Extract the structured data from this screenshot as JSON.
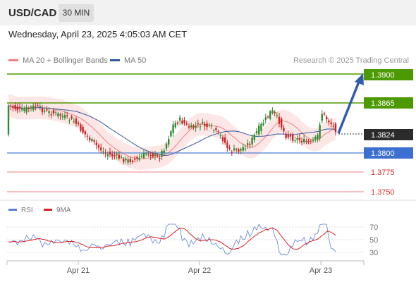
{
  "header": {
    "symbol": "USD/CAD",
    "timeframe": "30 MIN",
    "datetime": "Wednesday, April 23, 2025 4:05:03 AM CET"
  },
  "legend": {
    "ma20_label": "MA 20 + Bollinger Bands",
    "ma20_color": "#f08080",
    "ma50_label": "MA 50",
    "ma50_color": "#2c5aa0",
    "copyright": "Research © 2025 Trading Central"
  },
  "levels": [
    {
      "value": "1.3900",
      "style": "green-box"
    },
    {
      "value": "1.3865",
      "style": "green-box"
    },
    {
      "value": "1.3824",
      "style": "dark-box"
    },
    {
      "value": "1.3800",
      "style": "blue-box"
    },
    {
      "value": "1.3775",
      "style": "red-text"
    },
    {
      "value": "1.3750",
      "style": "red-text"
    }
  ],
  "rsi": {
    "rsi_label": "RSI",
    "rsi_color": "#5a7fd6",
    "ma_label": "9MA",
    "ma_color": "#e02020",
    "ticks": [
      "70",
      "50",
      "30"
    ]
  },
  "x_axis": {
    "labels": [
      "Apr 21",
      "Apr 22",
      "Apr 23"
    ]
  },
  "colors": {
    "up_candle": "#2e8b2e",
    "down_candle": "#cc2222",
    "support_green": "#4c9a00",
    "pivot_blue": "#4a7fd4",
    "arrow_blue": "#2e5ea8",
    "band_fill": "#fde0e0"
  }
}
